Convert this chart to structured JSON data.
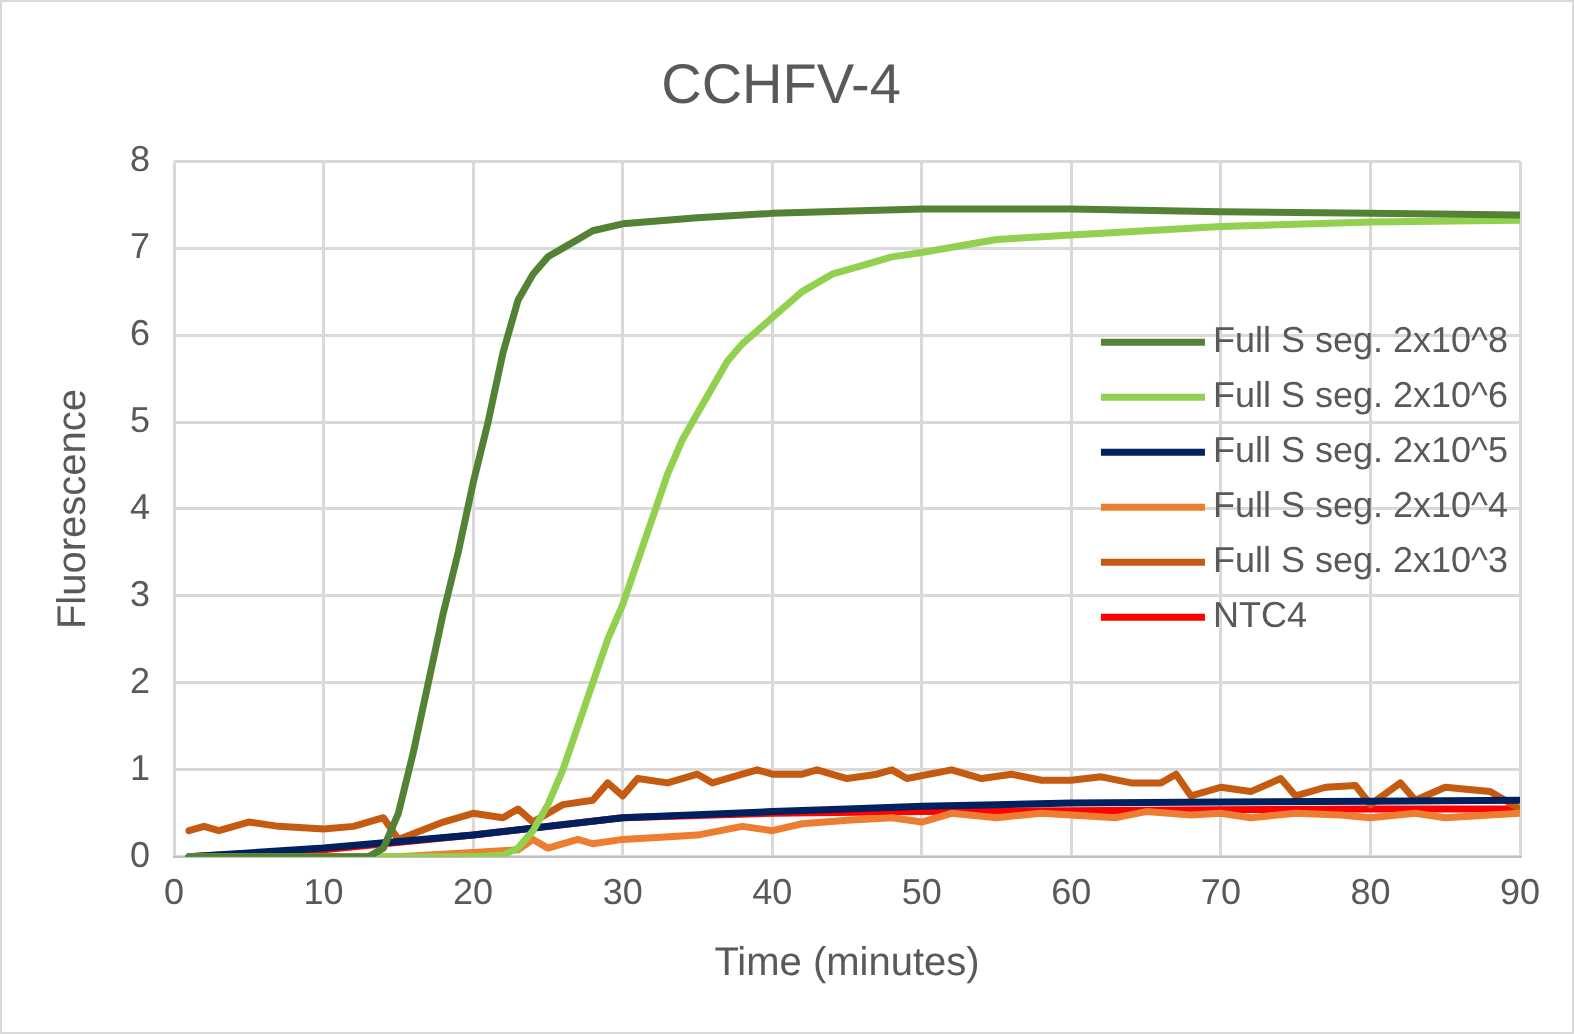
{
  "chart_data": {
    "type": "line",
    "title": "CCHFV-4",
    "xlabel": "Time (minutes)",
    "ylabel": "Fluorescence",
    "xlim": [
      0,
      90
    ],
    "xticks": [
      0,
      10,
      20,
      30,
      40,
      50,
      60,
      70,
      80,
      90
    ],
    "ylim": [
      0,
      8
    ],
    "yticks": [
      0,
      1,
      2,
      3,
      4,
      5,
      6,
      7,
      8
    ],
    "grid": true,
    "legend": "right",
    "marker": "none",
    "line_style": "solid",
    "series": [
      {
        "name": "Full S seg. 2x10^8",
        "color": "#548235",
        "x": [
          1,
          5,
          10,
          13,
          14,
          15,
          16,
          17,
          18,
          19,
          20,
          21,
          22,
          23,
          24,
          25,
          26,
          27,
          28,
          30,
          35,
          40,
          50,
          60,
          70,
          80,
          90
        ],
        "values": [
          0,
          0,
          0,
          0,
          0.1,
          0.5,
          1.2,
          2,
          2.8,
          3.5,
          4.3,
          5,
          5.8,
          6.4,
          6.7,
          6.9,
          7,
          7.1,
          7.2,
          7.28,
          7.35,
          7.4,
          7.45,
          7.45,
          7.42,
          7.4,
          7.38
        ]
      },
      {
        "name": "Full S seg. 2x10^6",
        "color": "#92d050",
        "x": [
          1,
          10,
          20,
          22,
          23,
          24,
          25,
          26,
          27,
          28,
          29,
          30,
          31,
          32,
          33,
          34,
          35,
          36,
          37,
          38,
          40,
          42,
          44,
          46,
          48,
          50,
          55,
          60,
          70,
          80,
          90
        ],
        "values": [
          0,
          0,
          0,
          0.02,
          0.1,
          0.3,
          0.6,
          1,
          1.5,
          2,
          2.5,
          2.9,
          3.4,
          3.9,
          4.4,
          4.8,
          5.1,
          5.4,
          5.7,
          5.9,
          6.2,
          6.5,
          6.7,
          6.8,
          6.9,
          6.95,
          7.1,
          7.15,
          7.25,
          7.3,
          7.32
        ]
      },
      {
        "name": "Full S seg. 2x10^5",
        "color": "#002060",
        "x": [
          1,
          10,
          20,
          30,
          40,
          45,
          50,
          55,
          60,
          70,
          80,
          90
        ],
        "values": [
          0,
          0.1,
          0.25,
          0.45,
          0.52,
          0.55,
          0.58,
          0.6,
          0.62,
          0.63,
          0.64,
          0.65
        ]
      },
      {
        "name": "Full S seg. 2x10^4",
        "color": "#ed7d31",
        "x": [
          1,
          10,
          15,
          20,
          23,
          24,
          25,
          27,
          28,
          30,
          32,
          35,
          38,
          40,
          42,
          45,
          48,
          50,
          52,
          55,
          58,
          60,
          63,
          65,
          68,
          70,
          72,
          75,
          78,
          80,
          83,
          85,
          88,
          90
        ],
        "values": [
          0,
          0,
          0,
          0.05,
          0.08,
          0.2,
          0.1,
          0.2,
          0.15,
          0.2,
          0.22,
          0.25,
          0.35,
          0.3,
          0.38,
          0.42,
          0.45,
          0.4,
          0.5,
          0.45,
          0.5,
          0.48,
          0.45,
          0.52,
          0.48,
          0.5,
          0.45,
          0.5,
          0.48,
          0.45,
          0.5,
          0.45,
          0.48,
          0.5
        ]
      },
      {
        "name": "Full S seg. 2x10^3",
        "color": "#c55a11",
        "x": [
          1,
          2,
          3,
          4,
          5,
          7,
          10,
          12,
          14,
          15,
          18,
          20,
          22,
          23,
          24,
          26,
          28,
          29,
          30,
          31,
          33,
          35,
          36,
          38,
          39,
          40,
          42,
          43,
          45,
          47,
          48,
          49,
          52,
          54,
          56,
          58,
          60,
          62,
          64,
          66,
          67,
          68,
          70,
          72,
          74,
          75,
          77,
          79,
          80,
          82,
          83,
          85,
          88,
          90
        ],
        "values": [
          0.3,
          0.35,
          0.3,
          0.35,
          0.4,
          0.35,
          0.32,
          0.35,
          0.45,
          0.2,
          0.4,
          0.5,
          0.45,
          0.55,
          0.4,
          0.6,
          0.65,
          0.85,
          0.7,
          0.9,
          0.85,
          0.95,
          0.85,
          0.95,
          1,
          0.95,
          0.95,
          1,
          0.9,
          0.95,
          1,
          0.9,
          1,
          0.9,
          0.95,
          0.88,
          0.88,
          0.92,
          0.85,
          0.85,
          0.95,
          0.7,
          0.8,
          0.75,
          0.9,
          0.7,
          0.8,
          0.82,
          0.6,
          0.85,
          0.65,
          0.8,
          0.75,
          0.55
        ]
      },
      {
        "name": "NTC4",
        "color": "#ff0000",
        "x": [
          1,
          10,
          20,
          25,
          30,
          40,
          50,
          60,
          70,
          80,
          90
        ],
        "values": [
          0,
          0.08,
          0.25,
          0.35,
          0.45,
          0.5,
          0.52,
          0.53,
          0.54,
          0.55,
          0.55
        ]
      }
    ]
  }
}
